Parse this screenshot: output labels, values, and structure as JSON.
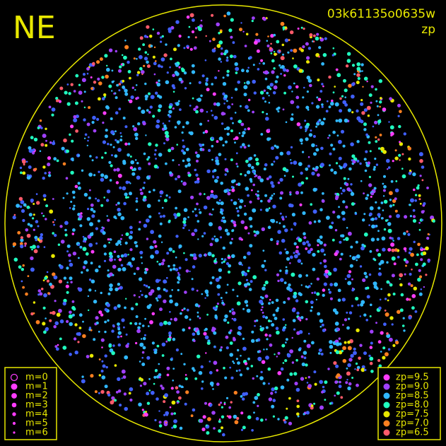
{
  "header": {
    "corner": "NE",
    "frame": "03k61135o0635w",
    "quantity": "zp"
  },
  "magnitude_legend": {
    "entries": [
      "m=0",
      "m=1",
      "m=2",
      "m=3",
      "m=4",
      "m=5",
      "m=6"
    ]
  },
  "zp_legend": {
    "entries": [
      {
        "label": "zp=9.5",
        "color": "#ff3cff"
      },
      {
        "label": "zp=9.0",
        "color": "#a040ff"
      },
      {
        "label": "zp=8.5",
        "color": "#30b8ff"
      },
      {
        "label": "zp=8.0",
        "color": "#20ffc0"
      },
      {
        "label": "zp=7.5",
        "color": "#e8e800"
      },
      {
        "label": "zp=7.0",
        "color": "#ff8020"
      },
      {
        "label": "zp=6.5",
        "color": "#ff5a6a"
      }
    ]
  }
}
